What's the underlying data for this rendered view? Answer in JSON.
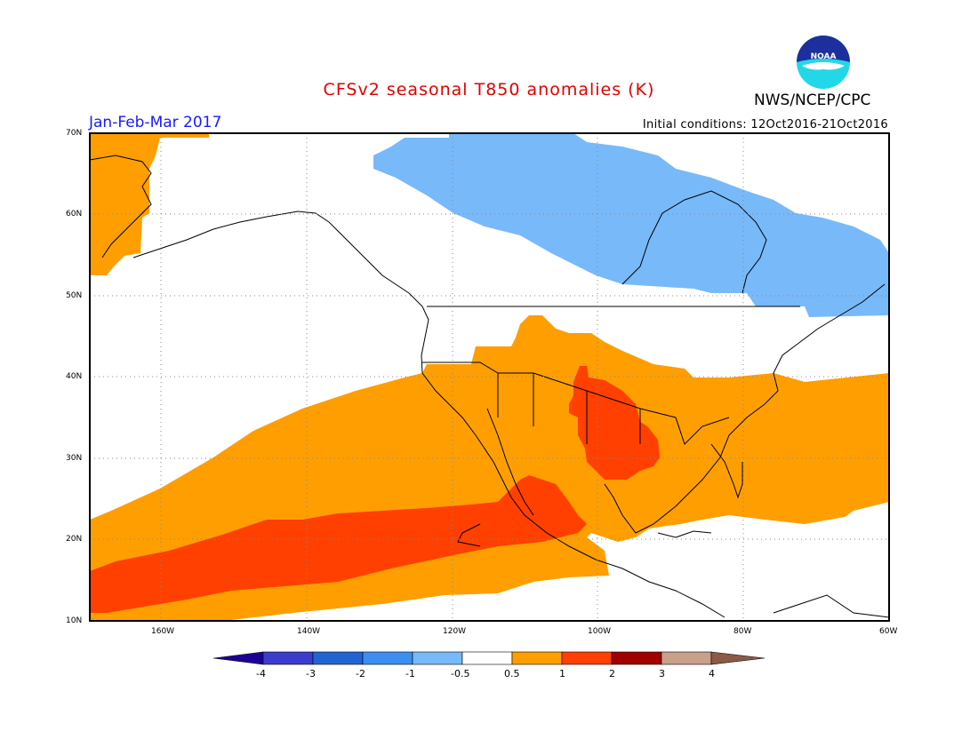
{
  "title": "CFSv2 seasonal T850 anomalies (K)",
  "agency": "NWS/NCEP/CPC",
  "logo_text": "NOAA",
  "period": "Jan-Feb-Mar 2017",
  "initial_conditions": "Initial conditions: 12Oct2016-21Oct2016",
  "lat_labels": [
    "70N",
    "60N",
    "50N",
    "40N",
    "30N",
    "20N",
    "10N"
  ],
  "lon_labels": [
    "160W",
    "140W",
    "120W",
    "100W",
    "80W",
    "60W"
  ],
  "colorbar": {
    "labels": [
      "-4",
      "-3",
      "-2",
      "-1",
      "-0.5",
      "0.5",
      "1",
      "2",
      "3",
      "4"
    ],
    "colors": [
      "#1e0096",
      "#3c3ccc",
      "#2264d2",
      "#3e8ef0",
      "#78b9fa",
      "#ffffff",
      "#ff9e00",
      "#ff4000",
      "#a00000",
      "#c8a08c",
      "#8c5a46"
    ]
  },
  "colors": {
    "title": "#e00000",
    "period": "#1a1aff"
  }
}
